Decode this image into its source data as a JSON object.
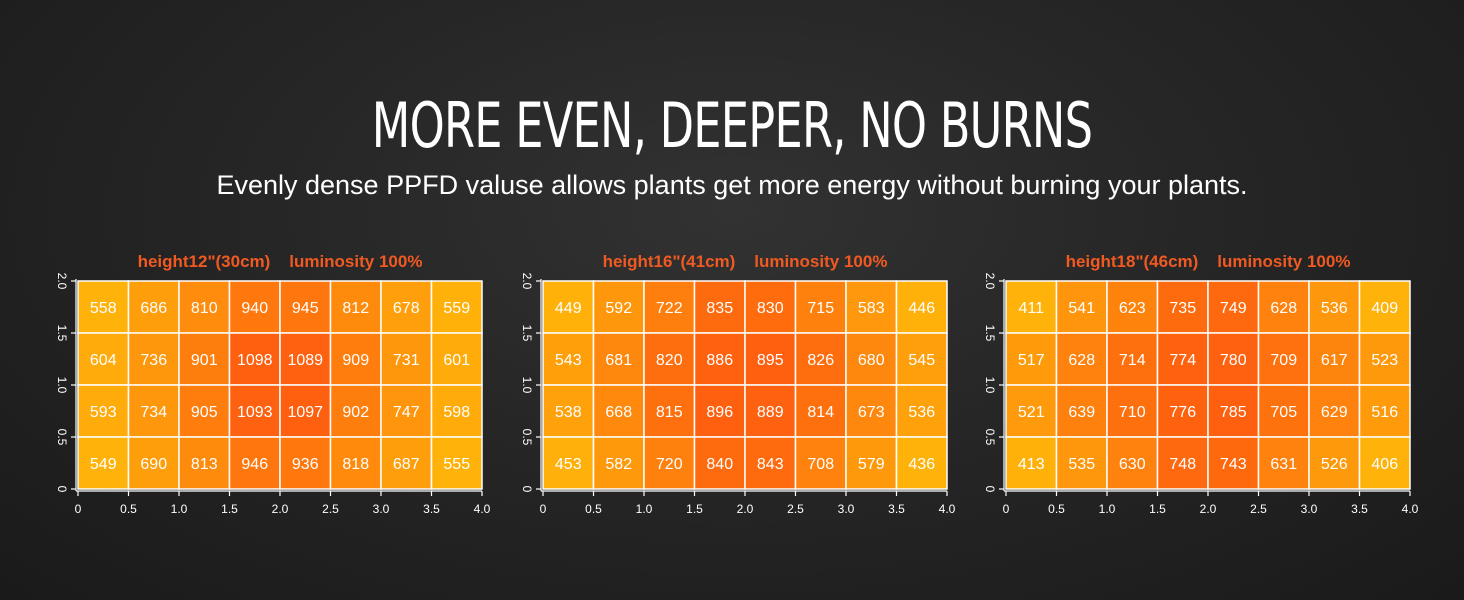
{
  "header": {
    "headline": "MORE EVEN, DEEPER, NO BURNS",
    "subtitle": "Evenly dense PPFD valuse allows plants get more energy without burning your plants."
  },
  "colors": {
    "background": "#262626",
    "title_accent": "#f05a22",
    "heat_low": "#ffb30a",
    "heat_high": "#fe600f",
    "grid_line": "#ffffff"
  },
  "chart_data": [
    {
      "type": "heatmap",
      "title": "height12\"(30cm)    luminosity 100%",
      "x_ticks": [
        "0",
        "0.5",
        "1.0",
        "1.5",
        "2.0",
        "2.5",
        "3.0",
        "3.5",
        "4.0"
      ],
      "y_ticks": [
        "0",
        "0.5",
        "1.0",
        "1.5",
        "2.0"
      ],
      "xlim": [
        0,
        4.0
      ],
      "ylim": [
        0,
        2.0
      ],
      "rows_top_to_bottom": [
        [
          558,
          686,
          810,
          940,
          945,
          812,
          678,
          559
        ],
        [
          604,
          736,
          901,
          1098,
          1089,
          909,
          731,
          601
        ],
        [
          593,
          734,
          905,
          1093,
          1097,
          902,
          747,
          598
        ],
        [
          549,
          690,
          813,
          946,
          936,
          818,
          687,
          555
        ]
      ]
    },
    {
      "type": "heatmap",
      "title": "height16\"(41cm)    luminosity 100%",
      "x_ticks": [
        "0",
        "0.5",
        "1.0",
        "1.5",
        "2.0",
        "2.5",
        "3.0",
        "3.5",
        "4.0"
      ],
      "y_ticks": [
        "0",
        "0.5",
        "1.0",
        "1.5",
        "2.0"
      ],
      "xlim": [
        0,
        4.0
      ],
      "ylim": [
        0,
        2.0
      ],
      "rows_top_to_bottom": [
        [
          449,
          592,
          722,
          835,
          830,
          715,
          583,
          446
        ],
        [
          543,
          681,
          820,
          886,
          895,
          826,
          680,
          545
        ],
        [
          538,
          668,
          815,
          896,
          889,
          814,
          673,
          536
        ],
        [
          453,
          582,
          720,
          840,
          843,
          708,
          579,
          436
        ]
      ]
    },
    {
      "type": "heatmap",
      "title": "height18\"(46cm)    luminosity 100%",
      "x_ticks": [
        "0",
        "0.5",
        "1.0",
        "1.5",
        "2.0",
        "2.5",
        "3.0",
        "3.5",
        "4.0"
      ],
      "y_ticks": [
        "0",
        "0.5",
        "1.0",
        "1.5",
        "2.0"
      ],
      "xlim": [
        0,
        4.0
      ],
      "ylim": [
        0,
        2.0
      ],
      "rows_top_to_bottom": [
        [
          411,
          541,
          623,
          735,
          749,
          628,
          536,
          409
        ],
        [
          517,
          628,
          714,
          774,
          780,
          709,
          617,
          523
        ],
        [
          521,
          639,
          710,
          776,
          785,
          705,
          629,
          516
        ],
        [
          413,
          535,
          630,
          748,
          743,
          631,
          526,
          406
        ]
      ]
    }
  ]
}
